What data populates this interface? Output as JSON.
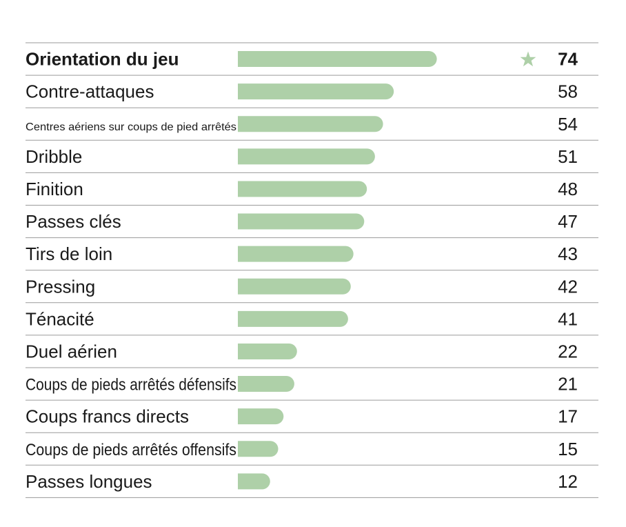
{
  "chart_data": {
    "type": "bar",
    "orientation": "horizontal",
    "title": "",
    "xlabel": "",
    "ylabel": "",
    "xlim": [
      0,
      100
    ],
    "grid": false,
    "legend": "none",
    "bar_color": "#aed0a8",
    "star_color": "#aed0a8",
    "categories": [
      "Orientation du jeu",
      "Contre-attaques",
      "Centres aériens sur coups de pied arrêtés",
      "Dribble",
      "Finition",
      "Passes clés",
      "Tirs de loin",
      "Pressing",
      "Ténacité",
      "Duel aérien",
      "Coups de pieds arrêtés défensifs",
      "Coups francs directs",
      "Coups de pieds arrêtés offensifs",
      "Passes longues"
    ],
    "values": [
      74,
      58,
      54,
      51,
      48,
      47,
      43,
      42,
      41,
      22,
      21,
      17,
      15,
      12
    ],
    "highlight_index": 0,
    "highlight_marker": "star"
  }
}
